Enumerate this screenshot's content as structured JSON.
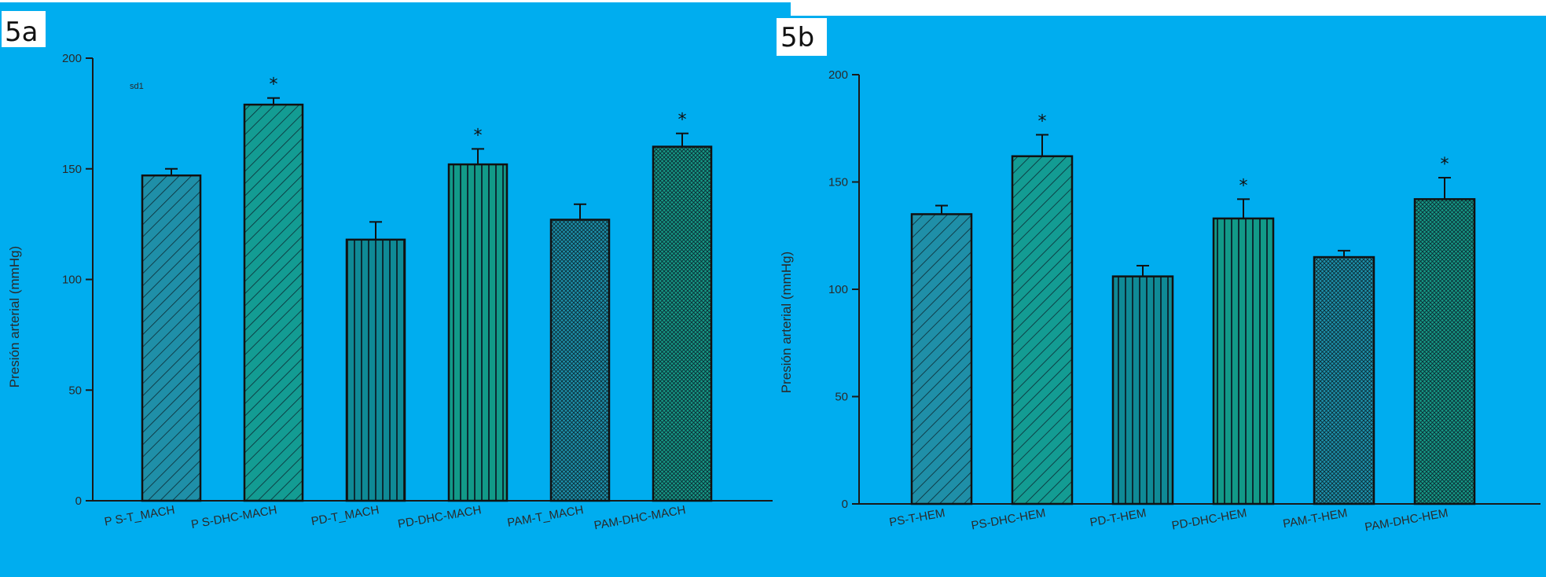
{
  "colors": {
    "panel_background": "#00adef",
    "bar_fill_a": "#1f8fa8",
    "bar_fill_b": "#139c93",
    "bar_fill_c": "#0f8a96",
    "bar_fill_d": "#129a88",
    "bar_fill_e": "#1d92ad",
    "bar_fill_f": "#169a86",
    "pattern_stroke": "#0b2a33"
  },
  "chart_data": [
    {
      "panel_label": "5a",
      "corner_note": "sd1",
      "type": "bar",
      "ylabel": "Presión arterial (mmHg)",
      "ylim": [
        0,
        200
      ],
      "yticks": [
        0,
        50,
        100,
        150,
        200
      ],
      "ytick_labels": [
        "0",
        "50",
        "100",
        "150",
        "200"
      ],
      "grid": false,
      "categories": [
        "P S-T_MACH",
        "P S-DHC-MACH",
        "PD-T_MACH",
        "PD-DHC-MACH",
        "PAM-T_MACH",
        "PAM-DHC-MACH"
      ],
      "values": [
        147,
        179,
        118,
        152,
        127,
        160
      ],
      "errors": [
        3,
        3,
        8,
        7,
        7,
        6
      ],
      "significant": [
        false,
        true,
        false,
        true,
        false,
        true
      ],
      "significance_mark": "*",
      "patterns": [
        "diag",
        "diag",
        "vert",
        "vert",
        "cross",
        "cross"
      ]
    },
    {
      "panel_label": "5b",
      "type": "bar",
      "ylabel": "Presión arterial (mmHg)",
      "ylim": [
        0,
        200
      ],
      "yticks": [
        0,
        50,
        100,
        150,
        200
      ],
      "ytick_labels": [
        "0",
        "50",
        "100",
        "150",
        "200"
      ],
      "grid": false,
      "categories": [
        "PS-T-HEM",
        "PS-DHC-HEM",
        "PD-T-HEM",
        "PD-DHC-HEM",
        "PAM-T-HEM",
        "PAM-DHC-HEM"
      ],
      "values": [
        135,
        162,
        106,
        133,
        115,
        142
      ],
      "errors": [
        4,
        10,
        5,
        9,
        3,
        10
      ],
      "significant": [
        false,
        true,
        false,
        true,
        false,
        true
      ],
      "significance_mark": "*",
      "patterns": [
        "diag",
        "diag",
        "vert",
        "vert",
        "cross",
        "cross"
      ]
    }
  ]
}
